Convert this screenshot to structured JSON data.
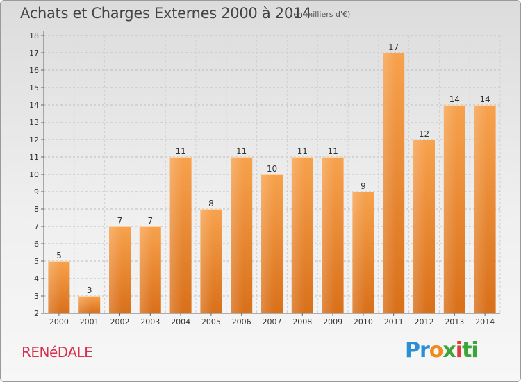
{
  "chart_data": {
    "type": "bar",
    "title": "Achats et Charges Externes 2000 à 2014",
    "subtitle": "(en milliers d'€)",
    "categories": [
      "2000",
      "2001",
      "2002",
      "2003",
      "2004",
      "2005",
      "2006",
      "2007",
      "2008",
      "2009",
      "2010",
      "2011",
      "2012",
      "2013",
      "2014"
    ],
    "values": [
      5,
      3,
      7,
      7,
      11,
      8,
      11,
      10,
      11,
      11,
      9,
      17,
      12,
      14,
      14
    ],
    "ylim": [
      2,
      18
    ],
    "yticks": [
      2,
      3,
      4,
      5,
      6,
      7,
      8,
      9,
      10,
      11,
      12,
      13,
      14,
      15,
      16,
      17,
      18
    ],
    "xlabel": "",
    "ylabel": "",
    "grid": true,
    "bar_color": "#f28d2a"
  },
  "footer": {
    "city": "RENéDALE",
    "logo": {
      "parts": [
        "Pr",
        "o",
        "x",
        "i",
        "ti"
      ]
    }
  }
}
